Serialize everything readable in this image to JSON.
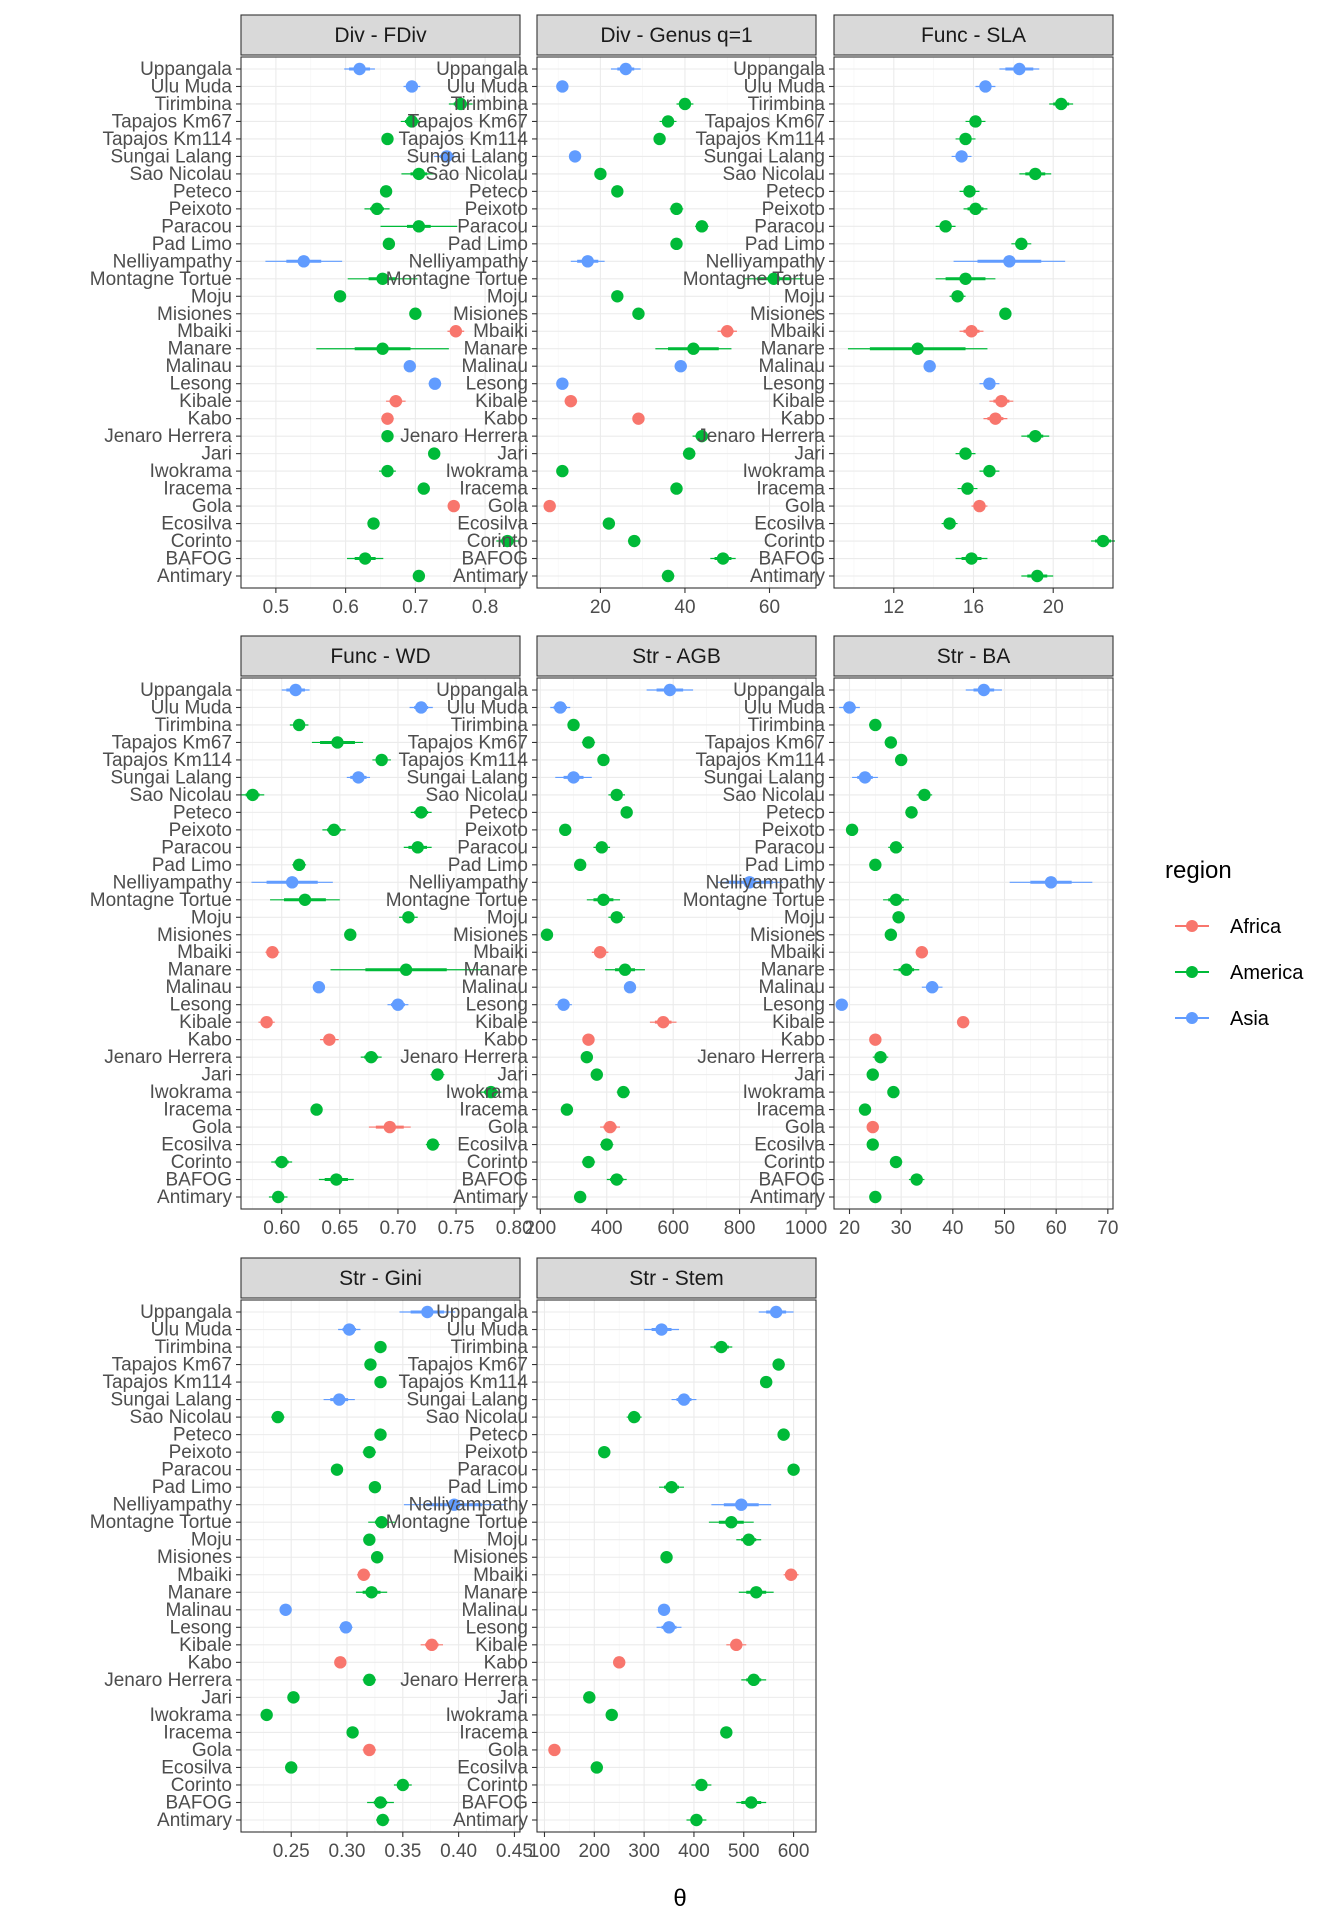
{
  "chart_data": {
    "type": "scatter",
    "subtype": "point-range forest plot (faceted)",
    "xlabel": "θ",
    "legend": {
      "title": "region",
      "position": "right",
      "entries": [
        {
          "name": "Africa",
          "color": "#F8766D"
        },
        {
          "name": "America",
          "color": "#00BA38"
        },
        {
          "name": "Asia",
          "color": "#619CFF"
        }
      ]
    },
    "sites": [
      "Uppangala",
      "Ulu Muda",
      "Tirimbina",
      "Tapajos Km67",
      "Tapajos Km114",
      "Sungai Lalang",
      "Sao Nicolau",
      "Peteco",
      "Peixoto",
      "Paracou",
      "Pad Limo",
      "Nelliyampathy",
      "Montagne Tortue",
      "Moju",
      "Misiones",
      "Mbaiki",
      "Manare",
      "Malinau",
      "Lesong",
      "Kibale",
      "Kabo",
      "Jenaro Herrera",
      "Jari",
      "Iwokrama",
      "Iracema",
      "Gola",
      "Ecosilva",
      "Corinto",
      "BAFOG",
      "Antimary"
    ],
    "regions": [
      "Asia",
      "Asia",
      "America",
      "America",
      "America",
      "Asia",
      "America",
      "America",
      "America",
      "America",
      "America",
      "Asia",
      "America",
      "America",
      "America",
      "Africa",
      "America",
      "Asia",
      "Asia",
      "Africa",
      "Africa",
      "America",
      "America",
      "America",
      "America",
      "Africa",
      "America",
      "America",
      "America",
      "America"
    ],
    "grid": true,
    "panels": [
      {
        "title": "Div - FDiv",
        "xlim": [
          0.45,
          0.85
        ],
        "ticks": [
          "0.5",
          "0.6",
          "0.7",
          "0.8"
        ],
        "estimates": [
          0.62,
          0.695,
          0.765,
          0.695,
          0.66,
          0.745,
          0.705,
          0.658,
          0.645,
          0.705,
          0.662,
          0.54,
          0.653,
          0.592,
          0.7,
          0.758,
          0.653,
          0.692,
          0.728,
          0.672,
          0.66,
          0.66,
          0.727,
          0.66,
          0.712,
          0.755,
          0.64,
          0.832,
          0.628,
          0.705
        ],
        "inner": [
          0.015,
          0.008,
          0.01,
          0.01,
          0.004,
          0.01,
          0.012,
          0.004,
          0.01,
          0.017,
          0.004,
          0.025,
          0.02,
          0.003,
          0.003,
          0.008,
          0.04,
          0.004,
          0.006,
          0.009,
          0.006,
          0.004,
          0.003,
          0.008,
          0.004,
          0.004,
          0.004,
          0.01,
          0.015,
          0.004
        ],
        "outer": [
          0.022,
          0.012,
          0.017,
          0.016,
          0.007,
          0.018,
          0.025,
          0.008,
          0.018,
          0.055,
          0.006,
          0.055,
          0.05,
          0.005,
          0.005,
          0.012,
          0.095,
          0.006,
          0.009,
          0.014,
          0.009,
          0.006,
          0.005,
          0.012,
          0.006,
          0.006,
          0.006,
          0.016,
          0.026,
          0.006
        ]
      },
      {
        "title": "Div - Genus q=1",
        "xlim": [
          5,
          71
        ],
        "ticks": [
          "20",
          "40",
          "60"
        ],
        "estimates": [
          26,
          11,
          40,
          36,
          34,
          14,
          20,
          24,
          38,
          44,
          38,
          17,
          61,
          24,
          29,
          50,
          42,
          39,
          11,
          13,
          29,
          44,
          41,
          11,
          38,
          8,
          22,
          28,
          49,
          36
        ],
        "inner": [
          2,
          0.8,
          1.2,
          1.2,
          0.8,
          0.8,
          0.8,
          0.8,
          1,
          1,
          0.8,
          2.5,
          4,
          0.8,
          0.8,
          1.5,
          6,
          1,
          0.8,
          1,
          0.8,
          1.5,
          1,
          0.8,
          1,
          0.8,
          0.8,
          1,
          2,
          1
        ],
        "outer": [
          3.5,
          1.2,
          2,
          2,
          1.2,
          1.2,
          1.2,
          1.2,
          1.6,
          1.6,
          1.2,
          4,
          7,
          1.2,
          1.2,
          2.3,
          9,
          1.4,
          1.2,
          1.5,
          1.2,
          2.2,
          1.5,
          1.2,
          1.4,
          1.2,
          1.2,
          1.5,
          3,
          1.5
        ]
      },
      {
        "title": "Func - SLA",
        "xlim": [
          9,
          23
        ],
        "ticks": [
          "12",
          "16",
          "20"
        ],
        "estimates": [
          18.3,
          16.6,
          20.4,
          16.1,
          15.6,
          15.4,
          19.1,
          15.8,
          16.1,
          14.6,
          18.4,
          17.8,
          15.6,
          15.2,
          17.6,
          15.9,
          13.2,
          13.8,
          16.8,
          17.4,
          17.1,
          19.1,
          15.6,
          16.8,
          15.7,
          16.3,
          14.8,
          22.5,
          15.9,
          19.2
        ],
        "inner": [
          0.7,
          0.3,
          0.4,
          0.3,
          0.3,
          0.3,
          0.5,
          0.3,
          0.4,
          0.3,
          0.3,
          1.6,
          1,
          0.3,
          0.2,
          0.4,
          2.4,
          0.2,
          0.3,
          0.4,
          0.4,
          0.4,
          0.3,
          0.3,
          0.3,
          0.3,
          0.3,
          0.4,
          0.5,
          0.5
        ],
        "outer": [
          1,
          0.5,
          0.6,
          0.5,
          0.5,
          0.5,
          0.8,
          0.5,
          0.6,
          0.5,
          0.5,
          2.8,
          1.5,
          0.4,
          0.3,
          0.6,
          3.5,
          0.3,
          0.5,
          0.6,
          0.6,
          0.7,
          0.5,
          0.5,
          0.5,
          0.4,
          0.4,
          0.6,
          0.8,
          0.8
        ]
      },
      {
        "title": "Func - WD",
        "xlim": [
          0.565,
          0.805
        ],
        "ticks": [
          "0.60",
          "0.65",
          "0.70",
          "0.75",
          "0.80"
        ],
        "estimates": [
          0.612,
          0.72,
          0.615,
          0.648,
          0.686,
          0.666,
          0.575,
          0.72,
          0.645,
          0.717,
          0.615,
          0.609,
          0.62,
          0.709,
          0.659,
          0.592,
          0.707,
          0.632,
          0.7,
          0.587,
          0.641,
          0.677,
          0.734,
          0.78,
          0.63,
          0.693,
          0.73,
          0.6,
          0.647,
          0.597
        ],
        "inner": [
          0.008,
          0.006,
          0.005,
          0.015,
          0.005,
          0.007,
          0.006,
          0.006,
          0.006,
          0.008,
          0.004,
          0.022,
          0.018,
          0.005,
          0.003,
          0.004,
          0.035,
          0.003,
          0.006,
          0.004,
          0.005,
          0.006,
          0.004,
          0.006,
          0.003,
          0.012,
          0.004,
          0.006,
          0.01,
          0.005
        ],
        "outer": [
          0.012,
          0.01,
          0.008,
          0.022,
          0.008,
          0.01,
          0.01,
          0.009,
          0.01,
          0.012,
          0.006,
          0.035,
          0.03,
          0.008,
          0.005,
          0.006,
          0.065,
          0.005,
          0.009,
          0.007,
          0.008,
          0.009,
          0.006,
          0.009,
          0.005,
          0.018,
          0.006,
          0.009,
          0.015,
          0.008
        ]
      },
      {
        "title": "Str - AGB",
        "xlim": [
          190,
          1030
        ],
        "ticks": [
          "200",
          "400",
          "600",
          "800",
          "1000"
        ],
        "estimates": [
          590,
          260,
          300,
          345,
          390,
          300,
          430,
          460,
          275,
          385,
          320,
          830,
          390,
          430,
          220,
          380,
          455,
          470,
          270,
          570,
          345,
          340,
          370,
          450,
          280,
          410,
          400,
          345,
          430,
          320
        ],
        "inner": [
          40,
          20,
          10,
          15,
          10,
          30,
          15,
          10,
          10,
          15,
          10,
          70,
          30,
          15,
          5,
          15,
          30,
          10,
          15,
          25,
          10,
          10,
          10,
          15,
          10,
          20,
          15,
          15,
          20,
          10
        ],
        "outer": [
          70,
          30,
          15,
          20,
          15,
          55,
          25,
          15,
          15,
          25,
          15,
          100,
          50,
          25,
          10,
          25,
          60,
          15,
          25,
          40,
          15,
          15,
          15,
          20,
          15,
          30,
          20,
          20,
          30,
          15
        ]
      },
      {
        "title": "Str - BA",
        "xlim": [
          17,
          71
        ],
        "ticks": [
          "20",
          "30",
          "40",
          "50",
          "60",
          "70"
        ],
        "estimates": [
          46,
          20,
          25,
          28,
          30,
          23,
          34.5,
          32,
          20.5,
          29,
          25,
          59,
          29,
          29.5,
          28,
          34,
          31,
          36,
          18.5,
          42,
          25,
          26,
          24.5,
          28.5,
          23,
          24.5,
          24.5,
          29,
          33,
          25
        ],
        "inner": [
          2,
          1.2,
          0.8,
          0.8,
          0.8,
          1.5,
          1,
          0.8,
          0.6,
          1,
          0.6,
          4,
          1.5,
          0.8,
          0.6,
          0.8,
          1.5,
          1.2,
          0.6,
          0.8,
          0.6,
          1,
          0.5,
          0.6,
          0.6,
          0.5,
          0.5,
          0.8,
          1,
          0.6
        ],
        "outer": [
          3.5,
          2,
          1.2,
          1.2,
          1.2,
          2.5,
          1.5,
          1.2,
          1,
          1.5,
          1,
          8,
          2.5,
          1.2,
          1,
          1.2,
          2.5,
          2,
          1,
          1.2,
          1,
          1.5,
          0.8,
          1,
          1,
          0.8,
          0.8,
          1.2,
          1.5,
          1
        ]
      },
      {
        "title": "Str - Gini",
        "xlim": [
          0.205,
          0.455
        ],
        "ticks": [
          "0.25",
          "0.30",
          "0.35",
          "0.40",
          "0.45"
        ],
        "estimates": [
          0.372,
          0.302,
          0.33,
          0.321,
          0.33,
          0.293,
          0.238,
          0.33,
          0.32,
          0.291,
          0.325,
          0.396,
          0.331,
          0.32,
          0.327,
          0.315,
          0.322,
          0.245,
          0.299,
          0.376,
          0.294,
          0.32,
          0.252,
          0.228,
          0.305,
          0.32,
          0.25,
          0.35,
          0.33,
          0.332
        ],
        "inner": [
          0.015,
          0.006,
          0.003,
          0.003,
          0.003,
          0.008,
          0.004,
          0.003,
          0.004,
          0.003,
          0.003,
          0.025,
          0.006,
          0.003,
          0.003,
          0.004,
          0.008,
          0.003,
          0.004,
          0.006,
          0.003,
          0.004,
          0.003,
          0.003,
          0.003,
          0.004,
          0.003,
          0.005,
          0.006,
          0.004
        ],
        "outer": [
          0.025,
          0.01,
          0.005,
          0.005,
          0.005,
          0.014,
          0.006,
          0.005,
          0.006,
          0.004,
          0.004,
          0.045,
          0.012,
          0.005,
          0.004,
          0.006,
          0.014,
          0.004,
          0.006,
          0.01,
          0.004,
          0.006,
          0.004,
          0.004,
          0.004,
          0.006,
          0.004,
          0.008,
          0.012,
          0.006
        ]
      },
      {
        "title": "Str - Stem",
        "xlim": [
          85,
          645
        ],
        "ticks": [
          "100",
          "200",
          "300",
          "400",
          "500",
          "600"
        ],
        "estimates": [
          565,
          335,
          455,
          570,
          545,
          380,
          280,
          580,
          220,
          600,
          355,
          495,
          475,
          510,
          345,
          595,
          525,
          340,
          350,
          485,
          250,
          520,
          190,
          235,
          465,
          120,
          205,
          415,
          515,
          405
        ],
        "inner": [
          20,
          20,
          15,
          8,
          8,
          15,
          10,
          8,
          8,
          8,
          15,
          35,
          25,
          15,
          8,
          10,
          20,
          8,
          15,
          12,
          8,
          15,
          8,
          8,
          8,
          8,
          8,
          12,
          20,
          12
        ],
        "outer": [
          35,
          35,
          22,
          12,
          12,
          25,
          15,
          12,
          12,
          12,
          25,
          60,
          45,
          25,
          12,
          15,
          35,
          12,
          25,
          20,
          12,
          25,
          12,
          12,
          12,
          12,
          12,
          20,
          30,
          20
        ]
      }
    ]
  }
}
